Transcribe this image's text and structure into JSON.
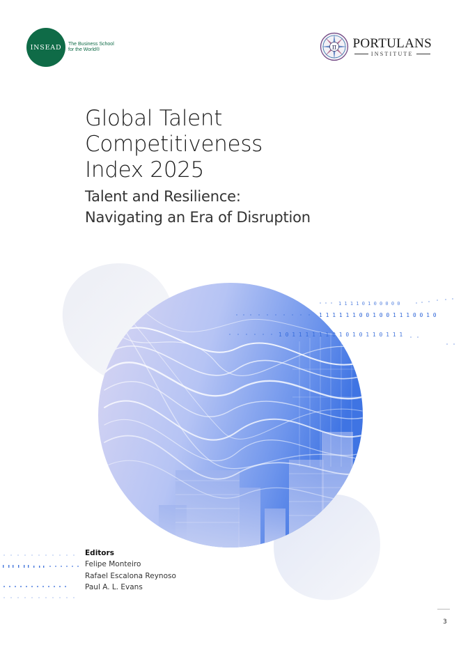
{
  "insead": {
    "mark": "INSEAD",
    "tagline_line1": "The Business School",
    "tagline_line2": "for the World®"
  },
  "portulans": {
    "name": "PORTULANS",
    "sub": "INSTITUTE",
    "emblem_glyph": "π"
  },
  "title": {
    "line1": "Global Talent",
    "line2": "Competitiveness",
    "line3": "Index 2025",
    "subtitle_line1": "Talent and Resilience:",
    "subtitle_line2": "Navigating an Era of Disruption"
  },
  "editors": {
    "heading": "Editors",
    "names": [
      "Felipe Monteiro",
      "Rafael Escalona Reynoso",
      "Paul A. L. Evans"
    ]
  },
  "binary": {
    "row1": "1 1 1 1 0 1 0 0 0 0 0",
    "row2": "1 1 1 1 1 1 0 0 1 0 0 1 1 1 0 0 1 0",
    "row3": "1 0 1 1 1 1 1 1 0 1 0 1 0 1 1 0 1 1 1"
  },
  "page_number": "3",
  "colors": {
    "insead_green": "#0f6b47",
    "accent_blue": "#2f66d8",
    "light_blob": "#eef0f6"
  }
}
